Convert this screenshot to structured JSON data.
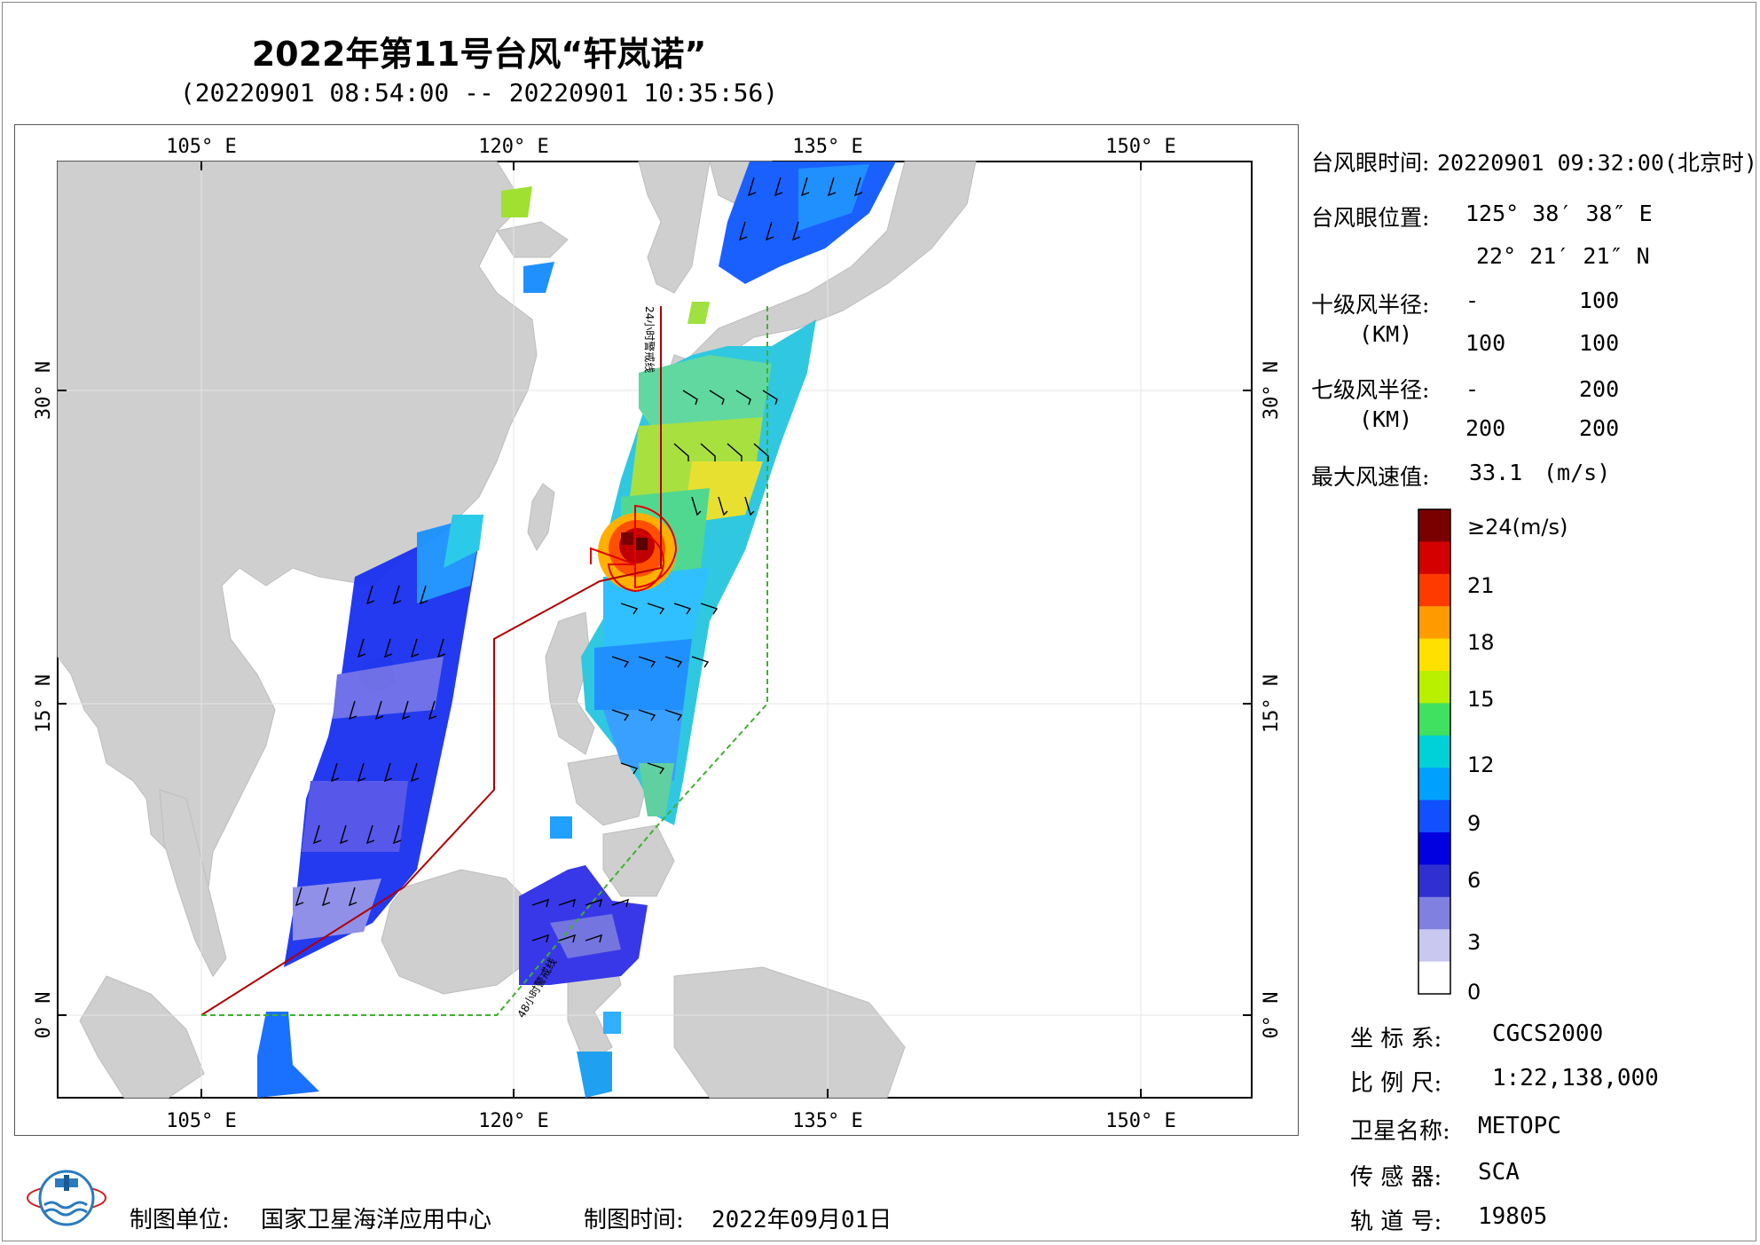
{
  "title": "2022年第11号台风“轩岚诺”",
  "subtitle": "(20220901 08:54:00 -- 20220901 10:35:56)",
  "map": {
    "lon_ticks": [
      "105° E",
      "120° E",
      "135° E",
      "150° E"
    ],
    "lat_ticks": [
      "30° N",
      "15° N",
      "0° N"
    ],
    "warning_line_24h": "24小时警戒线",
    "warning_line_48h": "48小时警戒线"
  },
  "info": {
    "eye_time_label": "台风眼时间:",
    "eye_time_value": "20220901 09:32:00(北京时)",
    "eye_pos_label": "台风眼位置:",
    "eye_lon": "125° 38′ 38″ E",
    "eye_lat": "22° 21′ 21″ N",
    "r10_label": "十级风半径:",
    "r10_unit": "(KM)",
    "r10_values": [
      "-",
      "100",
      "100",
      "100"
    ],
    "r7_label": "七级风半径:",
    "r7_unit": "(KM)",
    "r7_values": [
      "-",
      "200",
      "200",
      "200"
    ],
    "max_wind_label": "最大风速值:",
    "max_wind_value": "33.1",
    "max_wind_unit": "(m/s)"
  },
  "colorbar": {
    "labels": [
      "≥24(m/s)",
      "21",
      "18",
      "15",
      "12",
      "9",
      "6",
      "3",
      "0"
    ],
    "colors": [
      "#7a0000",
      "#d40000",
      "#ff3a00",
      "#ff9a00",
      "#ffe000",
      "#b8f000",
      "#40e060",
      "#00d0d8",
      "#00a0ff",
      "#1050ff",
      "#0000e0",
      "#3030d0",
      "#8080e0",
      "#c8c8f0",
      "#ffffff"
    ]
  },
  "meta": {
    "coord_label": "坐 标 系:",
    "coord_value": "CGCS2000",
    "scale_label": "比 例 尺:",
    "scale_value": "1:22,138,000",
    "sat_label": "卫星名称:",
    "sat_value": "METOPC",
    "sensor_label": "传 感 器:",
    "sensor_value": "SCA",
    "orbit_label": "轨 道 号:",
    "orbit_value": "19805"
  },
  "footer": {
    "org_label": "制图单位:",
    "org_value": "国家卫星海洋应用中心",
    "date_label": "制图时间:",
    "date_value": "2022年09月01日"
  }
}
